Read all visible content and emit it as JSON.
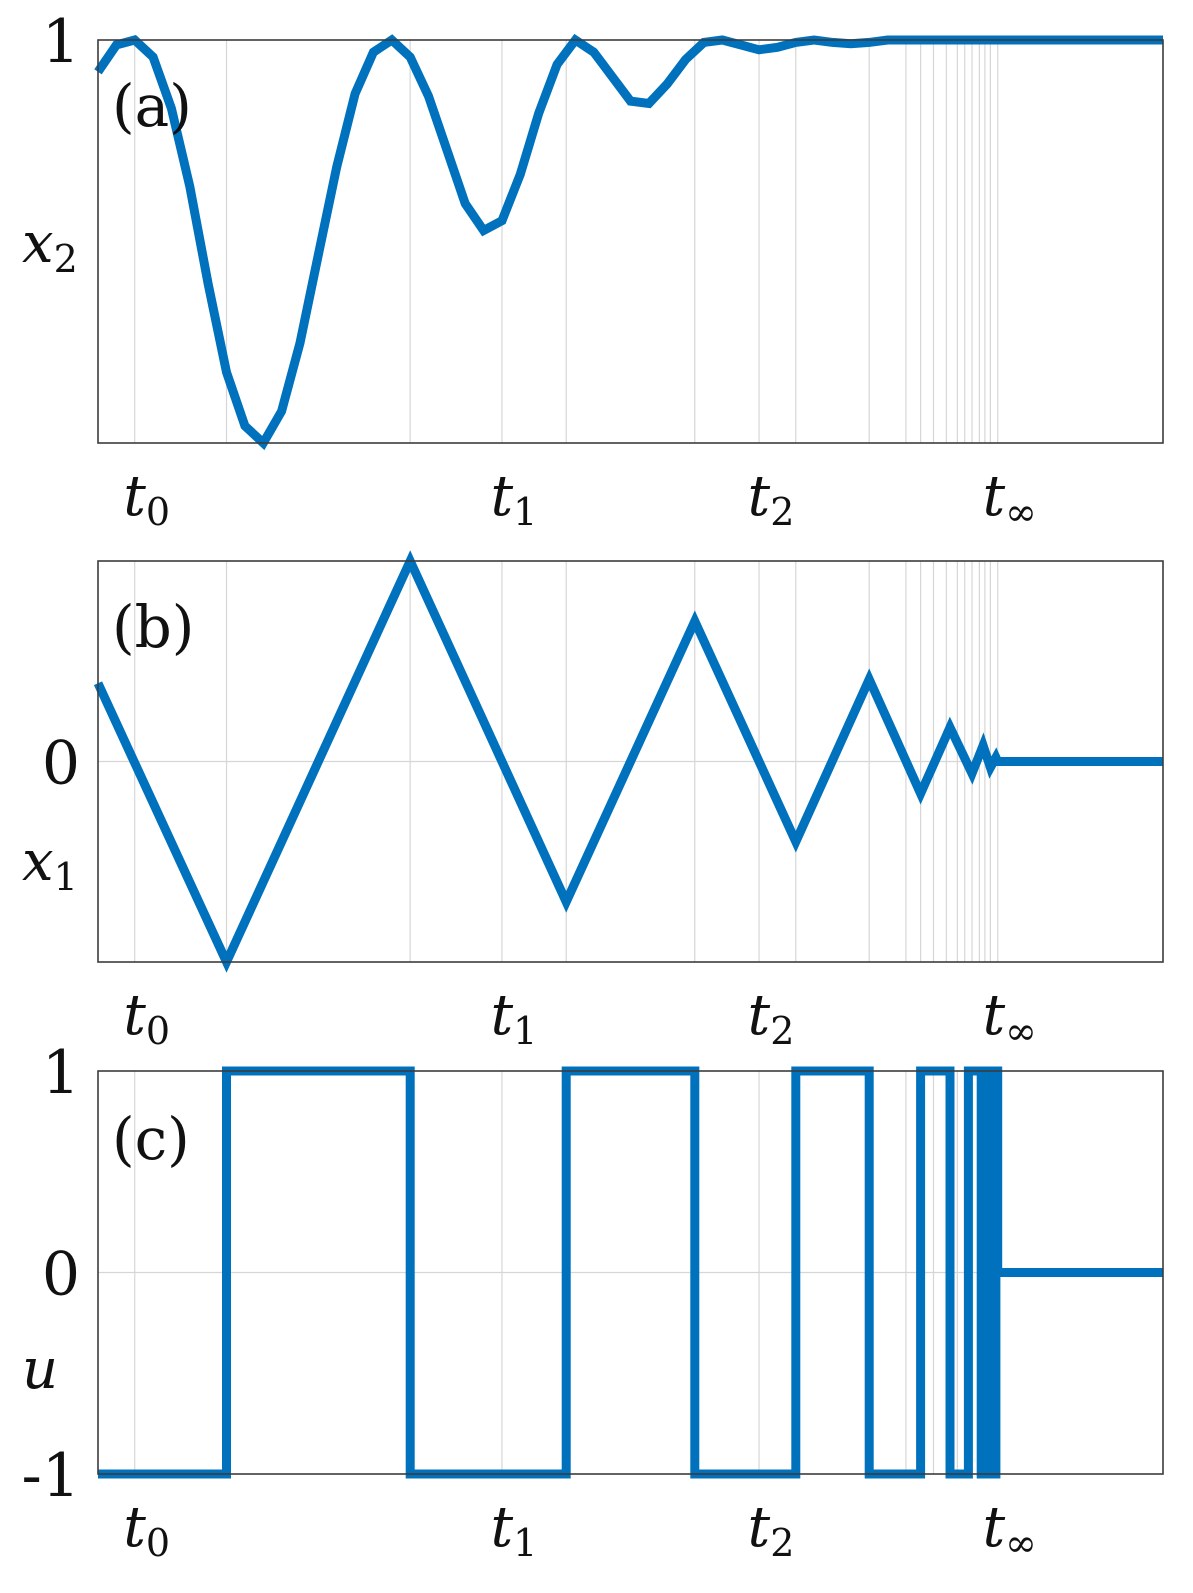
{
  "chart_data": [
    {
      "type": "line",
      "panel_label": "(a)",
      "ylabel": "x2",
      "ylabel_base": "x",
      "ylabel_sub": "2",
      "yticks": [
        {
          "value": 1,
          "label": "1"
        }
      ],
      "ylim": [
        -0.65,
        1.0
      ],
      "xlim": [
        -0.2,
        5.6
      ],
      "xticks": [
        {
          "value": 0,
          "base": "t",
          "sub": "0"
        },
        {
          "value": 2,
          "base": "t",
          "sub": "1"
        },
        {
          "value": 3.4,
          "base": "t",
          "sub": "2"
        },
        {
          "value": 4.7,
          "base": "t",
          "sub": "∞"
        }
      ],
      "vgrid": [
        0,
        0.5,
        1.5,
        2,
        2.35,
        3.05,
        3.4,
        3.6,
        4.0,
        4.2,
        4.28,
        4.35,
        4.42,
        4.48,
        4.52,
        4.56,
        4.6,
        4.63,
        4.66,
        4.7
      ],
      "hgrid": [],
      "series": [
        {
          "x": [
            -0.2,
            -0.1,
            0,
            0.1,
            0.2,
            0.3,
            0.4,
            0.5,
            0.6,
            0.7,
            0.8,
            0.9,
            1.0,
            1.1,
            1.2,
            1.3,
            1.4,
            1.5,
            1.6,
            1.7,
            1.8,
            1.9,
            2.0,
            2.1,
            2.2,
            2.3,
            2.4,
            2.5,
            2.6,
            2.7,
            2.8,
            2.9,
            3.0,
            3.1,
            3.2,
            3.3,
            3.4,
            3.5,
            3.6,
            3.7,
            3.8,
            3.9,
            4.0,
            4.1,
            4.2,
            4.3,
            4.4,
            4.5,
            4.6,
            4.7,
            5.6
          ],
          "y": [
            0.87,
            0.98,
            1.0,
            0.93,
            0.72,
            0.4,
            0.0,
            -0.36,
            -0.58,
            -0.65,
            -0.52,
            -0.24,
            0.12,
            0.48,
            0.78,
            0.95,
            1.0,
            0.93,
            0.77,
            0.55,
            0.33,
            0.22,
            0.26,
            0.45,
            0.7,
            0.9,
            1.0,
            0.95,
            0.85,
            0.75,
            0.74,
            0.82,
            0.92,
            0.99,
            1.0,
            0.98,
            0.96,
            0.97,
            0.99,
            1.0,
            0.99,
            0.985,
            0.99,
            1.0,
            1.0,
            1.0,
            1.0,
            1.0,
            1.0,
            1.0,
            1.0
          ]
        }
      ]
    },
    {
      "type": "line",
      "panel_label": "(b)",
      "ylabel": "x1",
      "ylabel_base": "x",
      "ylabel_sub": "1",
      "yticks": [
        {
          "value": 0,
          "label": "0"
        }
      ],
      "ylim": [
        -1.0,
        1.0
      ],
      "xlim": [
        -0.2,
        5.6
      ],
      "xticks": [
        {
          "value": 0,
          "base": "t",
          "sub": "0"
        },
        {
          "value": 2,
          "base": "t",
          "sub": "1"
        },
        {
          "value": 3.4,
          "base": "t",
          "sub": "2"
        },
        {
          "value": 4.7,
          "base": "t",
          "sub": "∞"
        }
      ],
      "vgrid": [
        0,
        0.5,
        1.5,
        2,
        2.35,
        3.05,
        3.4,
        3.6,
        4.0,
        4.2,
        4.28,
        4.35,
        4.42,
        4.48,
        4.52,
        4.56,
        4.6,
        4.63,
        4.66,
        4.7
      ],
      "hgrid": [
        0
      ],
      "series": [
        {
          "x": [
            -0.2,
            0.5,
            1.5,
            2.35,
            3.05,
            3.6,
            4.0,
            4.28,
            4.44,
            4.56,
            4.62,
            4.66,
            4.69,
            4.7,
            5.6
          ],
          "y": [
            0.39,
            -1.0,
            1.0,
            -0.7,
            0.7,
            -0.4,
            0.41,
            -0.16,
            0.17,
            -0.06,
            0.08,
            -0.03,
            0.02,
            0.0,
            0.0
          ]
        }
      ]
    },
    {
      "type": "line",
      "panel_label": "(c)",
      "ylabel": "u",
      "ylabel_base": "u",
      "ylabel_sub": "",
      "yticks": [
        {
          "value": 1,
          "label": "1"
        },
        {
          "value": 0,
          "label": "0"
        },
        {
          "value": -1,
          "label": "-1"
        }
      ],
      "ylim": [
        -1.0,
        1.0
      ],
      "xlim": [
        -0.2,
        5.6
      ],
      "xticks": [
        {
          "value": 0,
          "base": "t",
          "sub": "0"
        },
        {
          "value": 2,
          "base": "t",
          "sub": "1"
        },
        {
          "value": 3.4,
          "base": "t",
          "sub": "2"
        },
        {
          "value": 4.7,
          "base": "t",
          "sub": "∞"
        }
      ],
      "vgrid": [
        0,
        0.5,
        1.5,
        2,
        2.35,
        3.05,
        3.4,
        3.6,
        4.0,
        4.2,
        4.28,
        4.35,
        4.42,
        4.48,
        4.52,
        4.56,
        4.6,
        4.63,
        4.66,
        4.7
      ],
      "hgrid": [
        0
      ],
      "series": [
        {
          "x": [
            -0.2,
            0.5,
            0.5,
            1.5,
            1.5,
            2.35,
            2.35,
            3.05,
            3.05,
            3.6,
            3.6,
            4.0,
            4.0,
            4.28,
            4.28,
            4.44,
            4.44,
            4.54,
            4.54,
            4.61,
            4.61,
            4.65,
            4.65,
            4.67,
            4.67,
            4.69,
            4.69,
            4.7,
            4.7,
            5.6
          ],
          "y": [
            -1,
            -1,
            1,
            1,
            -1,
            -1,
            1,
            1,
            -1,
            -1,
            1,
            1,
            -1,
            -1,
            1,
            1,
            -1,
            -1,
            1,
            1,
            -1,
            -1,
            1,
            1,
            -1,
            -1,
            1,
            1,
            0,
            0
          ]
        }
      ]
    }
  ]
}
